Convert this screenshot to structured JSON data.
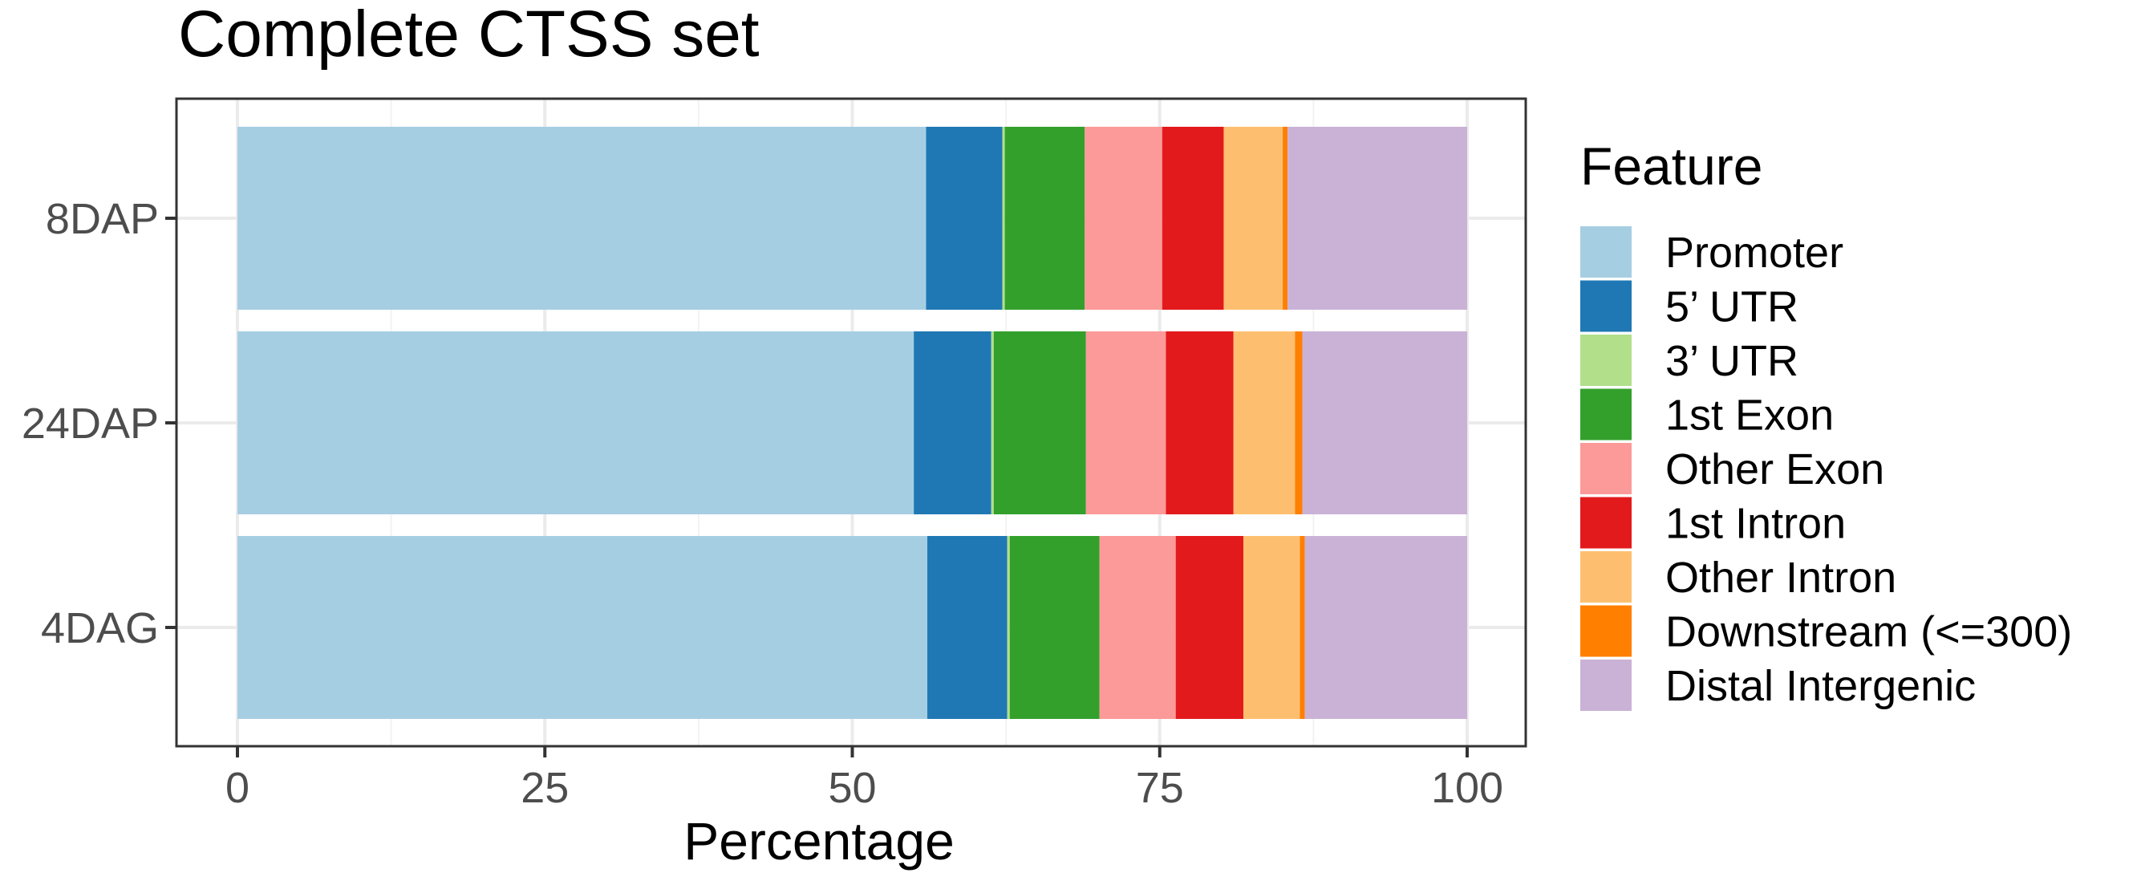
{
  "chart_data": {
    "type": "bar",
    "orientation": "horizontal",
    "stacked": true,
    "title": "Complete CTSS set",
    "xlabel": "Percentage",
    "ylabel": "",
    "xlim": [
      0,
      100
    ],
    "x_ticks": [
      "0",
      "25",
      "50",
      "75",
      "100"
    ],
    "categories": [
      "8DAP",
      "24DAP",
      "4DAG"
    ],
    "grid": true,
    "legend": {
      "title": "Feature",
      "position": "right"
    },
    "series": [
      {
        "name": "Promoter",
        "color": "#A6CEE3",
        "values": [
          56.0,
          55.0,
          56.1
        ]
      },
      {
        "name": "5’ UTR",
        "color": "#1F78B4",
        "values": [
          6.2,
          6.3,
          6.5
        ]
      },
      {
        "name": "3’ UTR",
        "color": "#B2DF8A",
        "values": [
          0.2,
          0.2,
          0.2
        ]
      },
      {
        "name": "1st Exon",
        "color": "#33A02C",
        "values": [
          6.5,
          7.5,
          7.3
        ]
      },
      {
        "name": "Other Exon",
        "color": "#FB9A99",
        "values": [
          6.3,
          6.5,
          6.2
        ]
      },
      {
        "name": "1st Intron",
        "color": "#E31A1C",
        "values": [
          5.0,
          5.5,
          5.5
        ]
      },
      {
        "name": "Other Intron",
        "color": "#FDBF6F",
        "values": [
          4.8,
          5.0,
          4.6
        ]
      },
      {
        "name": "Downstream (<=300)",
        "color": "#FF7F00",
        "values": [
          0.4,
          0.6,
          0.4
        ]
      },
      {
        "name": "Distal Intergenic",
        "color": "#CAB2D6",
        "values": [
          14.6,
          13.4,
          13.2
        ]
      }
    ]
  }
}
